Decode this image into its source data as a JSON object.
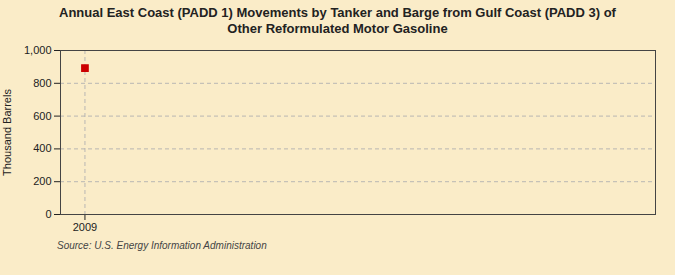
{
  "chart_data": {
    "type": "scatter",
    "title": "Annual East Coast (PADD 1) Movements by Tanker and Barge from Gulf Coast (PADD 3) of\nOther Reformulated Motor Gasoline",
    "ylabel": "Thousand Barrels",
    "annotations": [
      "Source: U.S. Energy Information Administration"
    ],
    "x": [
      2009
    ],
    "values": [
      893
    ],
    "color": "#cc0000",
    "marker": "square",
    "xlim": [
      2008.4,
      2023
    ],
    "xticks": [
      2009
    ],
    "ylim": [
      0,
      1000
    ],
    "yticks": [
      0,
      200,
      400,
      600,
      800,
      {
        "value": 1000,
        "label": "1,000"
      }
    ],
    "grid": true
  }
}
